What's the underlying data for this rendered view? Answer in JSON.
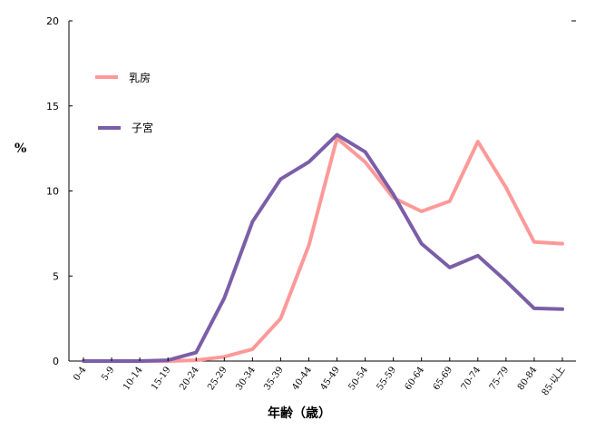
{
  "chart_data": {
    "type": "line",
    "title": "",
    "xlabel": "年齢（歳）",
    "ylabel": "%",
    "ylim": [
      0,
      20
    ],
    "yticks": [
      "0",
      "5",
      "10",
      "15",
      "20"
    ],
    "categories": [
      "0-4",
      "5-9",
      "10-14",
      "15-19",
      "20-24",
      "25-29",
      "30-34",
      "35-39",
      "40-44",
      "45-49",
      "50-54",
      "55-59",
      "60-64",
      "65-69",
      "70-74",
      "75-79",
      "80-84",
      "85-以上"
    ],
    "series": [
      {
        "name": "乳房",
        "color": "#ff9999",
        "values": [
          0,
          0,
          0,
          0,
          0.05,
          0.25,
          0.7,
          2.5,
          6.8,
          13.1,
          11.7,
          9.6,
          8.8,
          9.4,
          12.9,
          10.2,
          7.0,
          6.9
        ]
      },
      {
        "name": "子宮",
        "color": "#7b5ea7",
        "values": [
          0,
          0,
          0,
          0.05,
          0.5,
          3.7,
          8.2,
          10.7,
          11.7,
          13.3,
          12.3,
          9.8,
          6.9,
          5.5,
          6.2,
          4.7,
          3.1,
          3.05
        ]
      }
    ],
    "legend_position": "top-left"
  }
}
